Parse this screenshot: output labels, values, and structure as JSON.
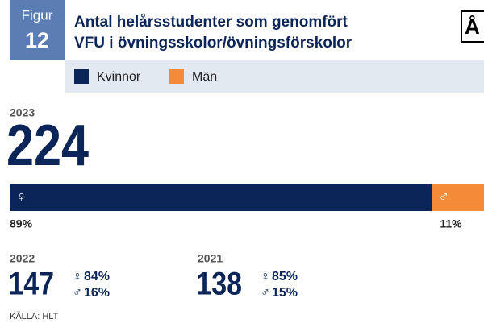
{
  "header": {
    "label": "Figur",
    "number": "12",
    "title": [
      "Antal helårsstudenter som genomfört",
      "VFU i övningsskolor/övningsförskolor"
    ],
    "corner": "Å"
  },
  "chart_data": {
    "type": "stacked-bar",
    "series": [
      {
        "name": "Kvinnor",
        "color": "#0b2559",
        "symbol": "♀"
      },
      {
        "name": "Män",
        "color": "#f58a38",
        "symbol": "♂"
      }
    ],
    "years": [
      {
        "year": "2023",
        "total": 224,
        "values": [
          89,
          11
        ],
        "value_labels": [
          "89%",
          "11%"
        ]
      },
      {
        "year": "2022",
        "total": 147,
        "values": [
          84,
          16
        ],
        "value_labels": [
          "84%",
          "16%"
        ]
      },
      {
        "year": "2021",
        "total": 138,
        "values": [
          85,
          15
        ],
        "value_labels": [
          "85%",
          "15%"
        ]
      }
    ]
  },
  "source": "KÄLLA: HLT"
}
